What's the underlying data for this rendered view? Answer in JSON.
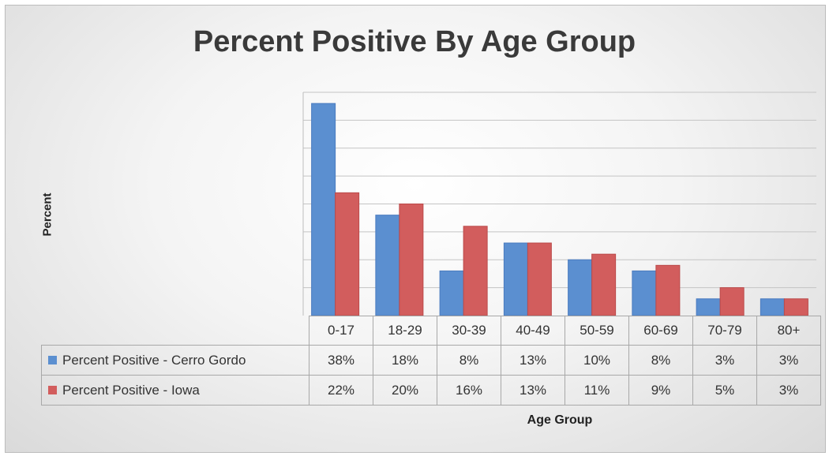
{
  "colors": {
    "cerro_gordo": "#5b8fd0",
    "iowa": "#d25d5d"
  },
  "chart_data": {
    "type": "bar",
    "title": "Percent Positive By Age Group",
    "xlabel": "Age Group",
    "ylabel": "Percent",
    "categories": [
      "0-17",
      "18-29",
      "30-39",
      "40-49",
      "50-59",
      "60-69",
      "70-79",
      "80+"
    ],
    "series": [
      {
        "name": "Percent Positive - Cerro Gordo",
        "values": [
          38,
          18,
          8,
          13,
          10,
          8,
          3,
          3
        ],
        "labels": [
          "38%",
          "18%",
          "8%",
          "13%",
          "10%",
          "8%",
          "3%",
          "3%"
        ]
      },
      {
        "name": "Percent Positive - Iowa",
        "values": [
          22,
          20,
          16,
          13,
          11,
          9,
          5,
          3
        ],
        "labels": [
          "22%",
          "20%",
          "16%",
          "13%",
          "11%",
          "9%",
          "5%",
          "3%"
        ]
      }
    ],
    "ylim": [
      0,
      40
    ],
    "gridlines": true,
    "legend": "data-table-bottom"
  }
}
